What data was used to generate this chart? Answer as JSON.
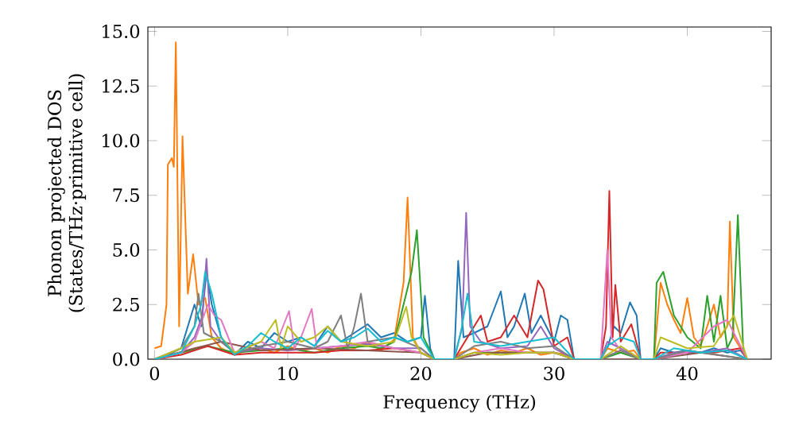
{
  "chart_data": {
    "type": "line",
    "xlabel": "Frequency (THz)",
    "ylabel": "Phonon projected DOS (States/THz·primitive cell)",
    "xlim": [
      -0.5,
      46.3
    ],
    "ylim": [
      0,
      15.2
    ],
    "xticks": [
      0,
      10,
      20,
      30,
      40
    ],
    "yticks": [
      {
        "value": 0,
        "label": "0.0"
      },
      {
        "value": 2.5,
        "label": "2.5"
      },
      {
        "value": 5,
        "label": "5.0"
      },
      {
        "value": 7.5,
        "label": "7.5"
      },
      {
        "value": 10,
        "label": "10.0"
      },
      {
        "value": 12.5,
        "label": "12.5"
      },
      {
        "value": 15,
        "label": "15.0"
      }
    ],
    "grid": false,
    "legend": false,
    "marker": "none",
    "line_style": "solid",
    "series": [
      {
        "color": "#1f77b4",
        "x": [
          0,
          1,
          2,
          3,
          3.5,
          3.9,
          4.3,
          5,
          6,
          7,
          8,
          9,
          10,
          11,
          12,
          13,
          14,
          15,
          16,
          17,
          18,
          19,
          20,
          20.3,
          20.7,
          21,
          22.5,
          22.8,
          23.2,
          24,
          25,
          26,
          26.5,
          27,
          27.8,
          28.3,
          29,
          30,
          30.5,
          31,
          31.5,
          33.5,
          34,
          34.5,
          35,
          35.7,
          36.2,
          36.5,
          37.5,
          38,
          39,
          40,
          41,
          42,
          43,
          44,
          44.5
        ],
        "values": [
          0,
          0.2,
          0.5,
          2.5,
          1.5,
          4.0,
          2.5,
          1.0,
          0.2,
          0.8,
          0.5,
          1.2,
          0.8,
          1.0,
          0.6,
          1.5,
          0.8,
          1.2,
          1.6,
          1.0,
          1.2,
          0.8,
          1.0,
          2.9,
          0.5,
          0,
          0,
          4.5,
          1.0,
          1.2,
          1.5,
          3.1,
          1.0,
          1.5,
          3.0,
          1.2,
          2.0,
          0.8,
          2.0,
          1.8,
          0,
          0,
          0.5,
          1.5,
          1.2,
          2.6,
          2.0,
          0,
          0,
          0.5,
          0.3,
          0.4,
          0.3,
          0.5,
          0.3,
          0.4,
          0
        ]
      },
      {
        "color": "#ff7f0e",
        "x": [
          0,
          0.5,
          0.9,
          1.0,
          1.3,
          1.45,
          1.6,
          1.85,
          2.1,
          2.5,
          2.9,
          3.3,
          3.8,
          4.3,
          5,
          6,
          7,
          8,
          9,
          10,
          11,
          12,
          13,
          14,
          15,
          16,
          17,
          18,
          18.7,
          19.0,
          19.4,
          20,
          21,
          22.5,
          23,
          24,
          25,
          26,
          27,
          28,
          29,
          30,
          31,
          31.5,
          33.5,
          34,
          35,
          36,
          36.5,
          37.5,
          38,
          38.5,
          39,
          39.5,
          40,
          40.5,
          41,
          41.5,
          42,
          42.5,
          43,
          43.2,
          43.5,
          44,
          44.5
        ],
        "values": [
          0.5,
          0.6,
          2.5,
          8.9,
          9.2,
          8.8,
          14.5,
          1.5,
          10.2,
          3,
          4.8,
          2.5,
          2.8,
          1.0,
          0.5,
          0.2,
          0.4,
          0.5,
          0.3,
          0.6,
          0.4,
          0.5,
          0.3,
          0.6,
          0.5,
          0.8,
          0.4,
          0.9,
          3.5,
          7.4,
          1.0,
          0.3,
          0,
          0,
          0.3,
          0.5,
          0.2,
          0.4,
          0.3,
          0.5,
          0.2,
          0.3,
          0.2,
          0,
          0,
          0.5,
          0.3,
          0.4,
          0,
          0,
          3.5,
          2.5,
          1.8,
          1.2,
          2.8,
          1.0,
          0.6,
          1.5,
          2.5,
          1.0,
          1.5,
          6.3,
          1.0,
          0.5,
          0
        ]
      },
      {
        "color": "#2ca02c",
        "x": [
          0,
          2,
          4,
          6,
          8,
          10,
          12,
          14,
          16,
          17,
          18,
          18.9,
          19.3,
          19.7,
          20.2,
          21,
          22.5,
          24,
          26,
          28,
          30,
          31.5,
          33.5,
          35,
          36.5,
          37.5,
          37.7,
          38.2,
          39,
          40,
          41,
          41.5,
          42,
          42.5,
          43,
          43.4,
          43.8,
          44.2,
          44.5
        ],
        "values": [
          0,
          0.3,
          0.6,
          0.3,
          0.4,
          0.5,
          0.3,
          0.5,
          0.6,
          0.5,
          0.8,
          3.0,
          4.0,
          5.9,
          1.0,
          0,
          0,
          0.3,
          0.3,
          0.3,
          0.3,
          0,
          0,
          0.3,
          0,
          0,
          3.5,
          4.0,
          2.0,
          1.0,
          0.5,
          2.9,
          0.8,
          2.9,
          0.5,
          1.0,
          6.6,
          0.5,
          0
        ]
      },
      {
        "color": "#d62728",
        "x": [
          0,
          2,
          4,
          6,
          8,
          10,
          12,
          14,
          16,
          18,
          20,
          21,
          22.5,
          24,
          24.5,
          25,
          26,
          27,
          28,
          28.8,
          29.2,
          30,
          31,
          31.5,
          33.5,
          33.9,
          34.15,
          34.4,
          34.6,
          35,
          35.8,
          36.3,
          36.5,
          37.5,
          38,
          40,
          42,
          44,
          44.5
        ],
        "values": [
          0,
          0.2,
          0.6,
          0.2,
          0.3,
          0.3,
          0.3,
          0.4,
          0.4,
          0.5,
          0.3,
          0,
          0,
          1.5,
          2.0,
          0.8,
          1.0,
          2.0,
          1.0,
          3.6,
          3.2,
          0.6,
          1.0,
          0,
          0,
          1.5,
          7.7,
          1.0,
          3.4,
          0.8,
          1.6,
          0.5,
          0,
          0,
          0.3,
          0.3,
          0.3,
          0.5,
          0
        ]
      },
      {
        "color": "#9467bd",
        "x": [
          0,
          2,
          3,
          3.6,
          3.9,
          4.2,
          5,
          6,
          8,
          10,
          12,
          14,
          16,
          18,
          20,
          21,
          22.5,
          23.1,
          23.4,
          23.7,
          24.5,
          26,
          28,
          29,
          30,
          31.5,
          33.5,
          34,
          35,
          36.5,
          37.5,
          39,
          41,
          43,
          44.5
        ],
        "values": [
          0,
          0.3,
          1.0,
          2.0,
          4.6,
          1.5,
          0.8,
          0.3,
          0.5,
          0.4,
          0.5,
          0.6,
          0.7,
          0.5,
          0.5,
          0,
          0,
          1.5,
          6.7,
          1.5,
          0.8,
          0.5,
          0.6,
          1.5,
          0.5,
          0,
          0,
          0.8,
          0.5,
          0,
          0,
          0.3,
          0.3,
          0.5,
          0
        ]
      },
      {
        "color": "#8c564b",
        "x": [
          0,
          3,
          5,
          8,
          12,
          16,
          20,
          21,
          22.5,
          25,
          30,
          31.5,
          33.5,
          36.5,
          37.5,
          41,
          44.5
        ],
        "values": [
          0,
          0.5,
          0.8,
          0.4,
          0.5,
          0.4,
          0.3,
          0,
          0,
          0.3,
          0.3,
          0,
          0,
          0,
          0,
          0.3,
          0
        ]
      },
      {
        "color": "#e377c2",
        "x": [
          0,
          2,
          3,
          4,
          4.5,
          5,
          6,
          8,
          9,
          10.1,
          10.5,
          11,
          11.8,
          12.2,
          14,
          16,
          18,
          20,
          21,
          22.5,
          24,
          26,
          28,
          30,
          31.5,
          33.5,
          34,
          34.3,
          35,
          36.5,
          37.5,
          40,
          42,
          43,
          44.5
        ],
        "values": [
          0,
          0.3,
          0.8,
          2.5,
          2.0,
          1.8,
          0.3,
          0.8,
          0.5,
          2.2,
          0.5,
          1.0,
          2.3,
          0.5,
          0.6,
          0.8,
          0.5,
          0.3,
          0,
          0,
          0.3,
          0.5,
          0.3,
          0.3,
          0,
          0,
          5.0,
          1.0,
          0.4,
          0,
          0,
          0.3,
          1.5,
          1.8,
          0
        ]
      },
      {
        "color": "#7f7f7f",
        "x": [
          0,
          2,
          3,
          3.3,
          3.7,
          5,
          6,
          8,
          10,
          12,
          13,
          14,
          14.5,
          15,
          15.5,
          16,
          18,
          20,
          21,
          22.5,
          24,
          26,
          28,
          30,
          31.5,
          33.5,
          35,
          36.5,
          37.5,
          40,
          44.5
        ],
        "values": [
          0,
          0.5,
          1.5,
          3.0,
          1.2,
          0.8,
          0.3,
          0.6,
          0.8,
          0.5,
          0.8,
          2.0,
          0.5,
          1.5,
          3.0,
          0.8,
          1.0,
          0.5,
          0,
          0,
          0.6,
          0.8,
          0.5,
          0.6,
          0,
          0,
          0.4,
          0,
          0,
          0.4,
          0
        ]
      },
      {
        "color": "#bcbd22",
        "x": [
          0,
          2,
          3,
          5,
          6,
          8,
          9.1,
          9.5,
          10,
          11,
          12,
          13,
          14,
          16,
          18,
          18.9,
          19.3,
          20,
          21,
          22.5,
          24,
          26,
          28,
          30,
          31.5,
          33.5,
          35,
          36.5,
          37.5,
          38,
          40,
          42,
          43.5,
          44.5
        ],
        "values": [
          0,
          0.5,
          0.8,
          1.0,
          0.3,
          0.8,
          1.8,
          0.5,
          1.5,
          0.8,
          1.0,
          1.5,
          0.8,
          0.6,
          0.8,
          2.4,
          1.0,
          0.3,
          0,
          0,
          0.3,
          0.2,
          0.3,
          0.3,
          0,
          0,
          0.6,
          0,
          0,
          1.0,
          0.5,
          0.6,
          2.0,
          0
        ]
      },
      {
        "color": "#17becf",
        "x": [
          0,
          2,
          3,
          3.5,
          3.8,
          4.3,
          5,
          6,
          7,
          8,
          9,
          10,
          11,
          12,
          13,
          14,
          15,
          16,
          17,
          18,
          19,
          20,
          21,
          22.5,
          23,
          23.5,
          24,
          26,
          28,
          30,
          31.5,
          33.5,
          34,
          35,
          36,
          36.5,
          37.5,
          39,
          41,
          43,
          44.5
        ],
        "values": [
          0,
          0.3,
          1.5,
          2.5,
          4.0,
          3.0,
          1.0,
          0.2,
          0.6,
          1.2,
          0.8,
          0.5,
          1.0,
          0.6,
          1.3,
          0.8,
          1.0,
          1.4,
          0.8,
          1.0,
          0.8,
          1.0,
          0,
          0,
          1.2,
          3.0,
          0.8,
          0.6,
          0.8,
          1.0,
          0,
          0,
          0.6,
          1.0,
          0.8,
          0,
          0,
          0.5,
          0.3,
          0.4,
          0
        ]
      }
    ]
  }
}
